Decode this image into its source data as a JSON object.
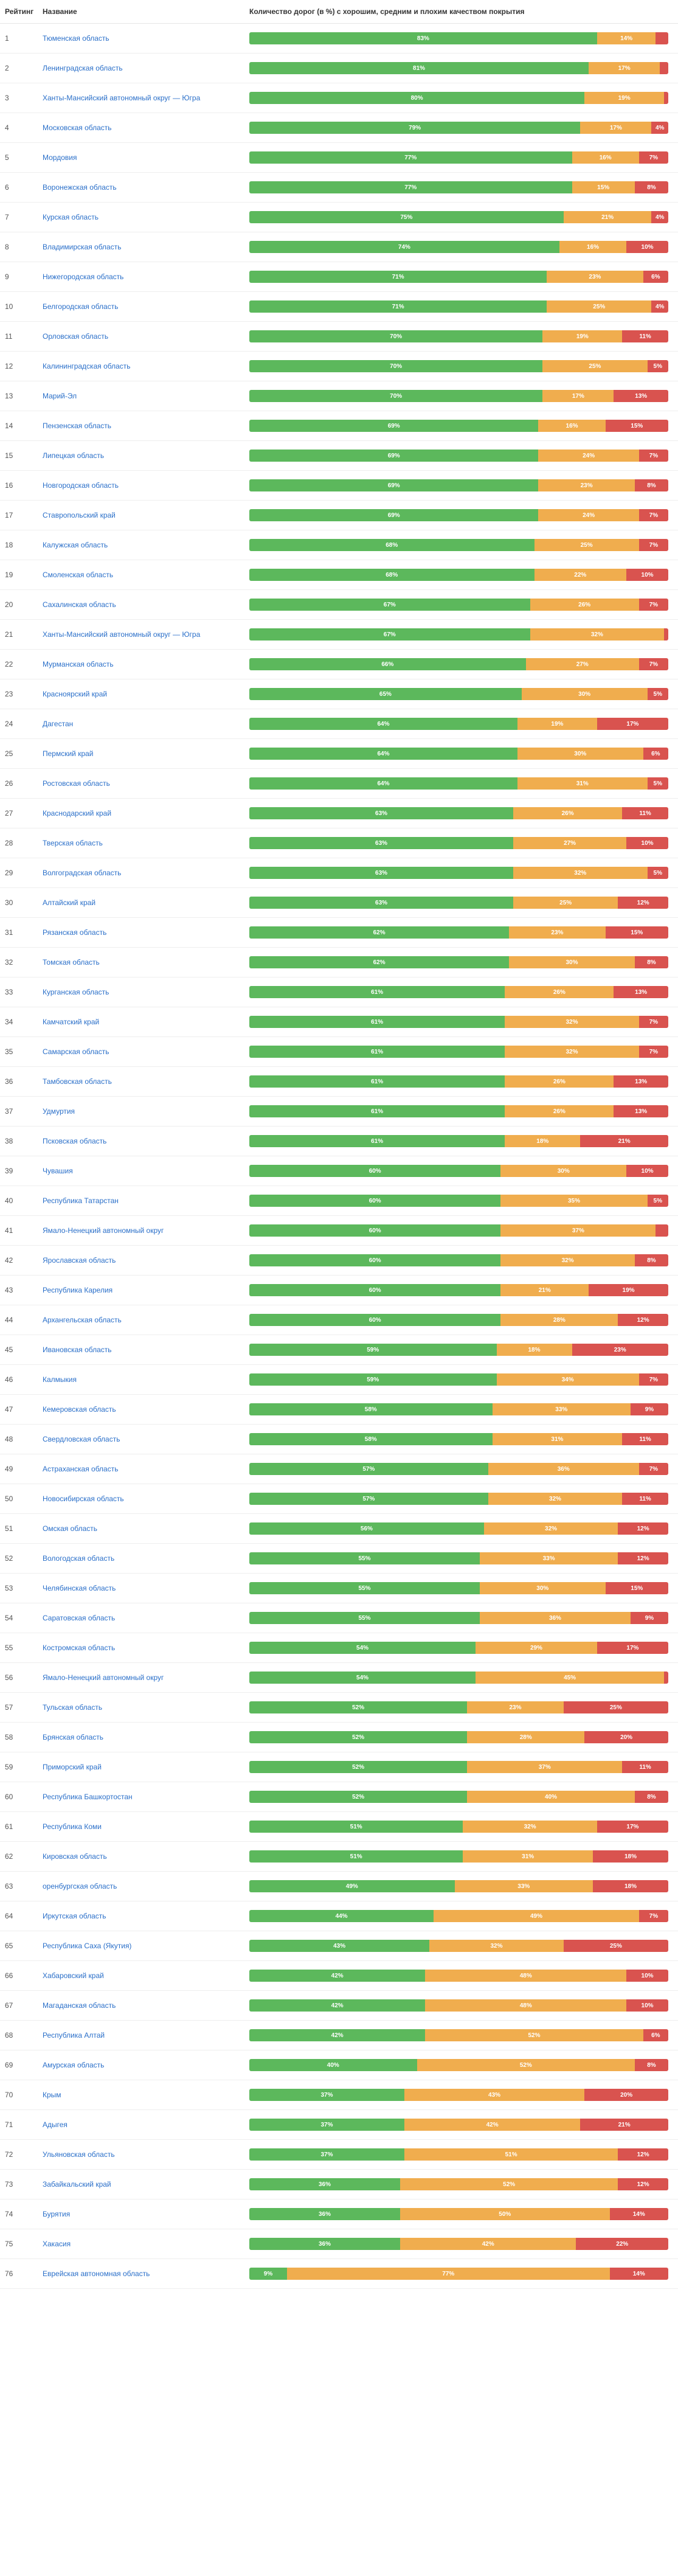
{
  "colors": {
    "good": "#5cb85c",
    "medium": "#f0ad4e",
    "bad": "#d9534f",
    "link": "#2a6fc9",
    "border": "#eeeeee",
    "header_border": "#e5e5e5",
    "text": "#333333"
  },
  "header": {
    "rating": "Рейтинг",
    "name": "Название",
    "chart": "Количество дорог (в %) с хорошим, средним и плохим качеством покрытия"
  },
  "rows": [
    {
      "rank": 1,
      "region": "Тюменская область",
      "good": 83,
      "medium": 14,
      "bad": 3
    },
    {
      "rank": 2,
      "region": "Ленинградская область",
      "good": 81,
      "medium": 17,
      "bad": 2
    },
    {
      "rank": 3,
      "region": "Ханты-Мансийский автономный округ — Югра",
      "good": 80,
      "medium": 19,
      "bad": 1
    },
    {
      "rank": 4,
      "region": "Московская область",
      "good": 79,
      "medium": 17,
      "bad": 4
    },
    {
      "rank": 5,
      "region": "Мордовия",
      "good": 77,
      "medium": 16,
      "bad": 7
    },
    {
      "rank": 6,
      "region": "Воронежская область",
      "good": 77,
      "medium": 15,
      "bad": 8
    },
    {
      "rank": 7,
      "region": "Курская область",
      "good": 75,
      "medium": 21,
      "bad": 4
    },
    {
      "rank": 8,
      "region": "Владимирская область",
      "good": 74,
      "medium": 16,
      "bad": 10
    },
    {
      "rank": 9,
      "region": "Нижегородская область",
      "good": 71,
      "medium": 23,
      "bad": 6
    },
    {
      "rank": 10,
      "region": "Белгородская область",
      "good": 71,
      "medium": 25,
      "bad": 4
    },
    {
      "rank": 11,
      "region": "Орловская область",
      "good": 70,
      "medium": 19,
      "bad": 11
    },
    {
      "rank": 12,
      "region": "Калининградская область",
      "good": 70,
      "medium": 25,
      "bad": 5
    },
    {
      "rank": 13,
      "region": "Марий-Эл",
      "good": 70,
      "medium": 17,
      "bad": 13
    },
    {
      "rank": 14,
      "region": "Пензенская область",
      "good": 69,
      "medium": 16,
      "bad": 15
    },
    {
      "rank": 15,
      "region": "Липецкая область",
      "good": 69,
      "medium": 24,
      "bad": 7
    },
    {
      "rank": 16,
      "region": "Новгородская область",
      "good": 69,
      "medium": 23,
      "bad": 8
    },
    {
      "rank": 17,
      "region": "Ставропольский край",
      "good": 69,
      "medium": 24,
      "bad": 7
    },
    {
      "rank": 18,
      "region": "Калужская область",
      "good": 68,
      "medium": 25,
      "bad": 7
    },
    {
      "rank": 19,
      "region": "Смоленская область",
      "good": 68,
      "medium": 22,
      "bad": 10
    },
    {
      "rank": 20,
      "region": "Сахалинская область",
      "good": 67,
      "medium": 26,
      "bad": 7
    },
    {
      "rank": 21,
      "region": "Ханты-Мансийский автономный округ — Югра",
      "good": 67,
      "medium": 32,
      "bad": 1
    },
    {
      "rank": 22,
      "region": "Мурманская область",
      "good": 66,
      "medium": 27,
      "bad": 7
    },
    {
      "rank": 23,
      "region": "Красноярский край",
      "good": 65,
      "medium": 30,
      "bad": 5
    },
    {
      "rank": 24,
      "region": "Дагестан",
      "good": 64,
      "medium": 19,
      "bad": 17
    },
    {
      "rank": 25,
      "region": "Пермский край",
      "good": 64,
      "medium": 30,
      "bad": 6
    },
    {
      "rank": 26,
      "region": "Ростовская область",
      "good": 64,
      "medium": 31,
      "bad": 5
    },
    {
      "rank": 27,
      "region": "Краснодарский край",
      "good": 63,
      "medium": 26,
      "bad": 11
    },
    {
      "rank": 28,
      "region": "Тверская область",
      "good": 63,
      "medium": 27,
      "bad": 10
    },
    {
      "rank": 29,
      "region": "Волгоградская область",
      "good": 63,
      "medium": 32,
      "bad": 5
    },
    {
      "rank": 30,
      "region": "Алтайский край",
      "good": 63,
      "medium": 25,
      "bad": 12
    },
    {
      "rank": 31,
      "region": "Рязанская область",
      "good": 62,
      "medium": 23,
      "bad": 15
    },
    {
      "rank": 32,
      "region": "Томская область",
      "good": 62,
      "medium": 30,
      "bad": 8
    },
    {
      "rank": 33,
      "region": "Курганская область",
      "good": 61,
      "medium": 26,
      "bad": 13
    },
    {
      "rank": 34,
      "region": "Камчатский край",
      "good": 61,
      "medium": 32,
      "bad": 7
    },
    {
      "rank": 35,
      "region": "Самарская область",
      "good": 61,
      "medium": 32,
      "bad": 7
    },
    {
      "rank": 36,
      "region": "Тамбовская область",
      "good": 61,
      "medium": 26,
      "bad": 13
    },
    {
      "rank": 37,
      "region": "Удмуртия",
      "good": 61,
      "medium": 26,
      "bad": 13
    },
    {
      "rank": 38,
      "region": "Псковская область",
      "good": 61,
      "medium": 18,
      "bad": 21
    },
    {
      "rank": 39,
      "region": "Чувашия",
      "good": 60,
      "medium": 30,
      "bad": 10
    },
    {
      "rank": 40,
      "region": "Республика Татарстан",
      "good": 60,
      "medium": 35,
      "bad": 5
    },
    {
      "rank": 41,
      "region": "Ямало-Ненецкий автономный округ",
      "good": 60,
      "medium": 37,
      "bad": 3
    },
    {
      "rank": 42,
      "region": "Ярославская область",
      "good": 60,
      "medium": 32,
      "bad": 8
    },
    {
      "rank": 43,
      "region": "Республика Карелия",
      "good": 60,
      "medium": 21,
      "bad": 19
    },
    {
      "rank": 44,
      "region": "Архангельская область",
      "good": 60,
      "medium": 28,
      "bad": 12
    },
    {
      "rank": 45,
      "region": "Ивановская область",
      "good": 59,
      "medium": 18,
      "bad": 23
    },
    {
      "rank": 46,
      "region": "Калмыкия",
      "good": 59,
      "medium": 34,
      "bad": 7
    },
    {
      "rank": 47,
      "region": "Кемеровская область",
      "good": 58,
      "medium": 33,
      "bad": 9
    },
    {
      "rank": 48,
      "region": "Свердловская область",
      "good": 58,
      "medium": 31,
      "bad": 11
    },
    {
      "rank": 49,
      "region": "Астраханская область",
      "good": 57,
      "medium": 36,
      "bad": 7
    },
    {
      "rank": 50,
      "region": "Новосибирская область",
      "good": 57,
      "medium": 32,
      "bad": 11
    },
    {
      "rank": 51,
      "region": "Омская область",
      "good": 56,
      "medium": 32,
      "bad": 12
    },
    {
      "rank": 52,
      "region": "Вологодская область",
      "good": 55,
      "medium": 33,
      "bad": 12
    },
    {
      "rank": 53,
      "region": "Челябинская область",
      "good": 55,
      "medium": 30,
      "bad": 15
    },
    {
      "rank": 54,
      "region": "Саратовская область",
      "good": 55,
      "medium": 36,
      "bad": 9
    },
    {
      "rank": 55,
      "region": "Костромская область",
      "good": 54,
      "medium": 29,
      "bad": 17
    },
    {
      "rank": 56,
      "region": "Ямало-Ненецкий автономный округ",
      "good": 54,
      "medium": 45,
      "bad": 1
    },
    {
      "rank": 57,
      "region": "Тульская область",
      "good": 52,
      "medium": 23,
      "bad": 25
    },
    {
      "rank": 58,
      "region": "Брянская область",
      "good": 52,
      "medium": 28,
      "bad": 20
    },
    {
      "rank": 59,
      "region": "Приморский край",
      "good": 52,
      "medium": 37,
      "bad": 11
    },
    {
      "rank": 60,
      "region": "Республика Башкортостан",
      "good": 52,
      "medium": 40,
      "bad": 8
    },
    {
      "rank": 61,
      "region": "Республика Коми",
      "good": 51,
      "medium": 32,
      "bad": 17
    },
    {
      "rank": 62,
      "region": "Кировская область",
      "good": 51,
      "medium": 31,
      "bad": 18
    },
    {
      "rank": 63,
      "region": "оренбургская область",
      "good": 49,
      "medium": 33,
      "bad": 18
    },
    {
      "rank": 64,
      "region": "Иркутская область",
      "good": 44,
      "medium": 49,
      "bad": 7
    },
    {
      "rank": 65,
      "region": "Республика Саха (Якутия)",
      "good": 43,
      "medium": 32,
      "bad": 25
    },
    {
      "rank": 66,
      "region": "Хабаровский край",
      "good": 42,
      "medium": 48,
      "bad": 10
    },
    {
      "rank": 67,
      "region": "Магаданская область",
      "good": 42,
      "medium": 48,
      "bad": 10
    },
    {
      "rank": 68,
      "region": "Республика Алтай",
      "good": 42,
      "medium": 52,
      "bad": 6
    },
    {
      "rank": 69,
      "region": "Амурская область",
      "good": 40,
      "medium": 52,
      "bad": 8
    },
    {
      "rank": 70,
      "region": "Крым",
      "good": 37,
      "medium": 43,
      "bad": 20
    },
    {
      "rank": 71,
      "region": "Адыгея",
      "good": 37,
      "medium": 42,
      "bad": 21
    },
    {
      "rank": 72,
      "region": "Ульяновская область",
      "good": 37,
      "medium": 51,
      "bad": 12
    },
    {
      "rank": 73,
      "region": "Забайкальский край",
      "good": 36,
      "medium": 52,
      "bad": 12
    },
    {
      "rank": 74,
      "region": "Бурятия",
      "good": 36,
      "medium": 50,
      "bad": 14
    },
    {
      "rank": 75,
      "region": "Хакасия",
      "good": 36,
      "medium": 42,
      "bad": 22
    },
    {
      "rank": 76,
      "region": "Еврейская автономная область",
      "good": 9,
      "medium": 77,
      "bad": 14
    }
  ]
}
